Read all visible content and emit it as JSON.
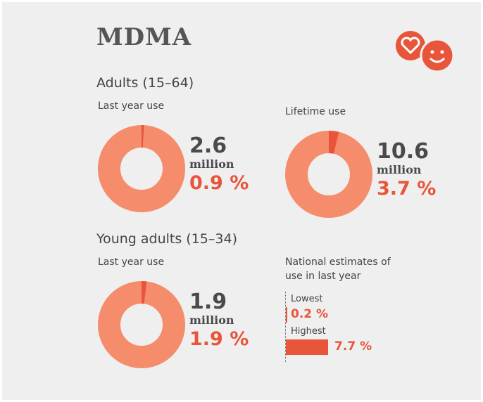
{
  "title": "MDMA",
  "headings": [
    "Adults (15–64)",
    "Young adults (15–34)"
  ],
  "chart_data": [
    {
      "type": "donut",
      "title": "Last year use",
      "headline": "2.6",
      "unit": "million",
      "values": [
        0.9
      ],
      "value_labels": [
        "0.9 %"
      ],
      "color": "#e8553b",
      "ring_color": "#f58c6c"
    },
    {
      "type": "donut",
      "title": "Lifetime use",
      "headline": "10.6",
      "unit": "million",
      "values": [
        3.7
      ],
      "value_labels": [
        "3.7 %"
      ],
      "color": "#e8553b",
      "ring_color": "#f58c6c"
    },
    {
      "type": "donut",
      "title": "Last year use",
      "headline": "1.9",
      "unit": "million",
      "values": [
        1.9
      ],
      "value_labels": [
        "1.9 %"
      ],
      "color": "#e8553b",
      "ring_color": "#f58c6c"
    },
    {
      "type": "bar",
      "title": "National estimates of use in last year",
      "categories": [
        "Lowest",
        "Highest"
      ],
      "values": [
        0.2,
        7.7
      ],
      "value_labels": [
        "0.2 %",
        "7.7 %"
      ],
      "color": "#e8553b"
    }
  ]
}
